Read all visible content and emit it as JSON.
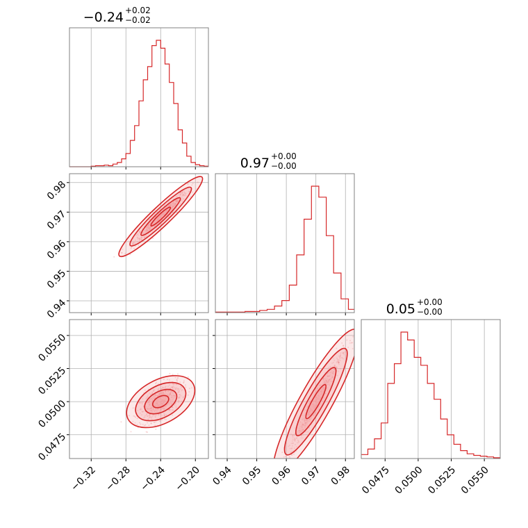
{
  "chart_data": {
    "type": "corner",
    "color": "#d62728",
    "fill_color": "#f4a6a8",
    "grid": true,
    "parameters": [
      {
        "range": [
          -0.345,
          -0.185
        ],
        "ticks": [
          -0.32,
          -0.28,
          -0.24,
          -0.2
        ],
        "tick_labels": [
          "−0.32",
          "−0.28",
          "−0.24",
          "−0.20"
        ],
        "title": {
          "value": "−0.24",
          "plus": "+0.02",
          "minus": "−0.02"
        }
      },
      {
        "range": [
          0.936,
          0.983
        ],
        "ticks": [
          0.94,
          0.95,
          0.96,
          0.97,
          0.98
        ],
        "tick_labels": [
          "0.94",
          "0.95",
          "0.96",
          "0.97",
          "0.98"
        ],
        "title": {
          "value": "0.97",
          "plus": "+0.00",
          "minus": "−0.00"
        }
      },
      {
        "range": [
          0.0457,
          0.0562
        ],
        "ticks": [
          0.0475,
          0.05,
          0.0525,
          0.055
        ],
        "tick_labels": [
          "0.0475",
          "0.0500",
          "0.0525",
          "0.0550"
        ],
        "title": {
          "value": "0.05",
          "plus": "+0.00",
          "minus": "−0.00"
        }
      }
    ],
    "histograms": [
      {
        "param": 0,
        "bins": [
          -0.345,
          -0.34,
          -0.335,
          -0.33,
          -0.325,
          -0.32,
          -0.315,
          -0.31,
          -0.305,
          -0.3,
          -0.295,
          -0.29,
          -0.285,
          -0.28,
          -0.275,
          -0.27,
          -0.265,
          -0.26,
          -0.255,
          -0.25,
          -0.245,
          -0.24,
          -0.235,
          -0.23,
          -0.225,
          -0.22,
          -0.215,
          -0.21,
          -0.205,
          -0.2,
          -0.195,
          -0.19,
          -0.185
        ],
        "counts": [
          0,
          0,
          0,
          0,
          0,
          1,
          2,
          2,
          3,
          2,
          5,
          8,
          15,
          25,
          50,
          78,
          125,
          165,
          190,
          230,
          240,
          225,
          195,
          160,
          120,
          70,
          45,
          20,
          8,
          4,
          2,
          1
        ]
      },
      {
        "param": 1,
        "bins": [
          0.936,
          0.9385,
          0.941,
          0.9435,
          0.946,
          0.9485,
          0.951,
          0.9535,
          0.956,
          0.9585,
          0.961,
          0.9635,
          0.966,
          0.9685,
          0.971,
          0.9735,
          0.976,
          0.9785,
          0.981,
          0.983
        ],
        "counts": [
          1,
          1,
          1,
          1,
          2,
          2,
          4,
          6,
          12,
          22,
          50,
          105,
          170,
          230,
          210,
          140,
          72,
          25,
          6
        ]
      },
      {
        "param": 2,
        "bins": [
          0.0457,
          0.0462,
          0.0467,
          0.0472,
          0.0477,
          0.0482,
          0.0487,
          0.0492,
          0.0497,
          0.0502,
          0.0507,
          0.0512,
          0.0517,
          0.0522,
          0.0527,
          0.0532,
          0.0537,
          0.0542,
          0.0547,
          0.0552,
          0.0557,
          0.0562
        ],
        "counts": [
          5,
          12,
          25,
          45,
          95,
          120,
          160,
          150,
          128,
          118,
          95,
          75,
          50,
          30,
          18,
          10,
          6,
          4,
          3,
          2,
          1
        ]
      }
    ],
    "scatters": [
      {
        "x_param": 0,
        "y_param": 1,
        "center": [
          -0.24,
          0.9685
        ],
        "direction": [
          1,
          0.28
        ],
        "spread": 0.028,
        "width": 0.0012
      },
      {
        "x_param": 0,
        "y_param": 2,
        "center": [
          -0.24,
          0.05
        ],
        "direction": [
          1,
          0.0358
        ],
        "spread": 0.022,
        "width": 0.0006
      },
      {
        "x_param": 1,
        "y_param": 2,
        "center": [
          0.97,
          0.05
        ],
        "direction": [
          1,
          0.4
        ],
        "spread": 0.008,
        "width": 0.00045
      }
    ]
  }
}
